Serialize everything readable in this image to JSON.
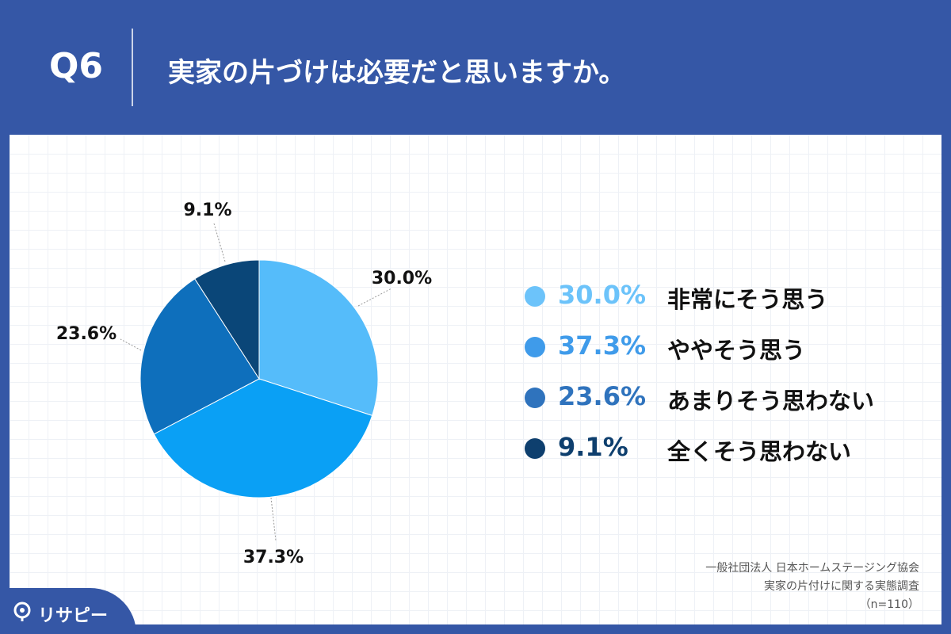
{
  "header": {
    "question_number": "Q6",
    "question_text": "実家の片づけは必要だと思いますか。"
  },
  "chart_data": {
    "type": "pie",
    "title": "",
    "slices": [
      {
        "label": "非常にそう思う",
        "value": 30.0,
        "display": "30.0%",
        "color": "#55bcfa"
      },
      {
        "label": "ややそう思う",
        "value": 37.3,
        "display": "37.3%",
        "color": "#0aa0f5"
      },
      {
        "label": "あまりそう思わない",
        "value": 23.6,
        "display": "23.6%",
        "color": "#0e6fbc"
      },
      {
        "label": "全くそう思わない",
        "value": 9.1,
        "display": "9.1%",
        "color": "#0a4678"
      }
    ],
    "legend_position": "right"
  },
  "legend_text_colors": [
    "#6cc3fa",
    "#3f9bea",
    "#2f73bd",
    "#0e3f6e"
  ],
  "source": {
    "line1": "一般社団法人 日本ホームステージング協会",
    "line2": "実家の片付けに関する実態調査",
    "line3": "（n=110）"
  },
  "logo": {
    "text": "リサピー",
    "icon": "risapi-logo-icon"
  }
}
